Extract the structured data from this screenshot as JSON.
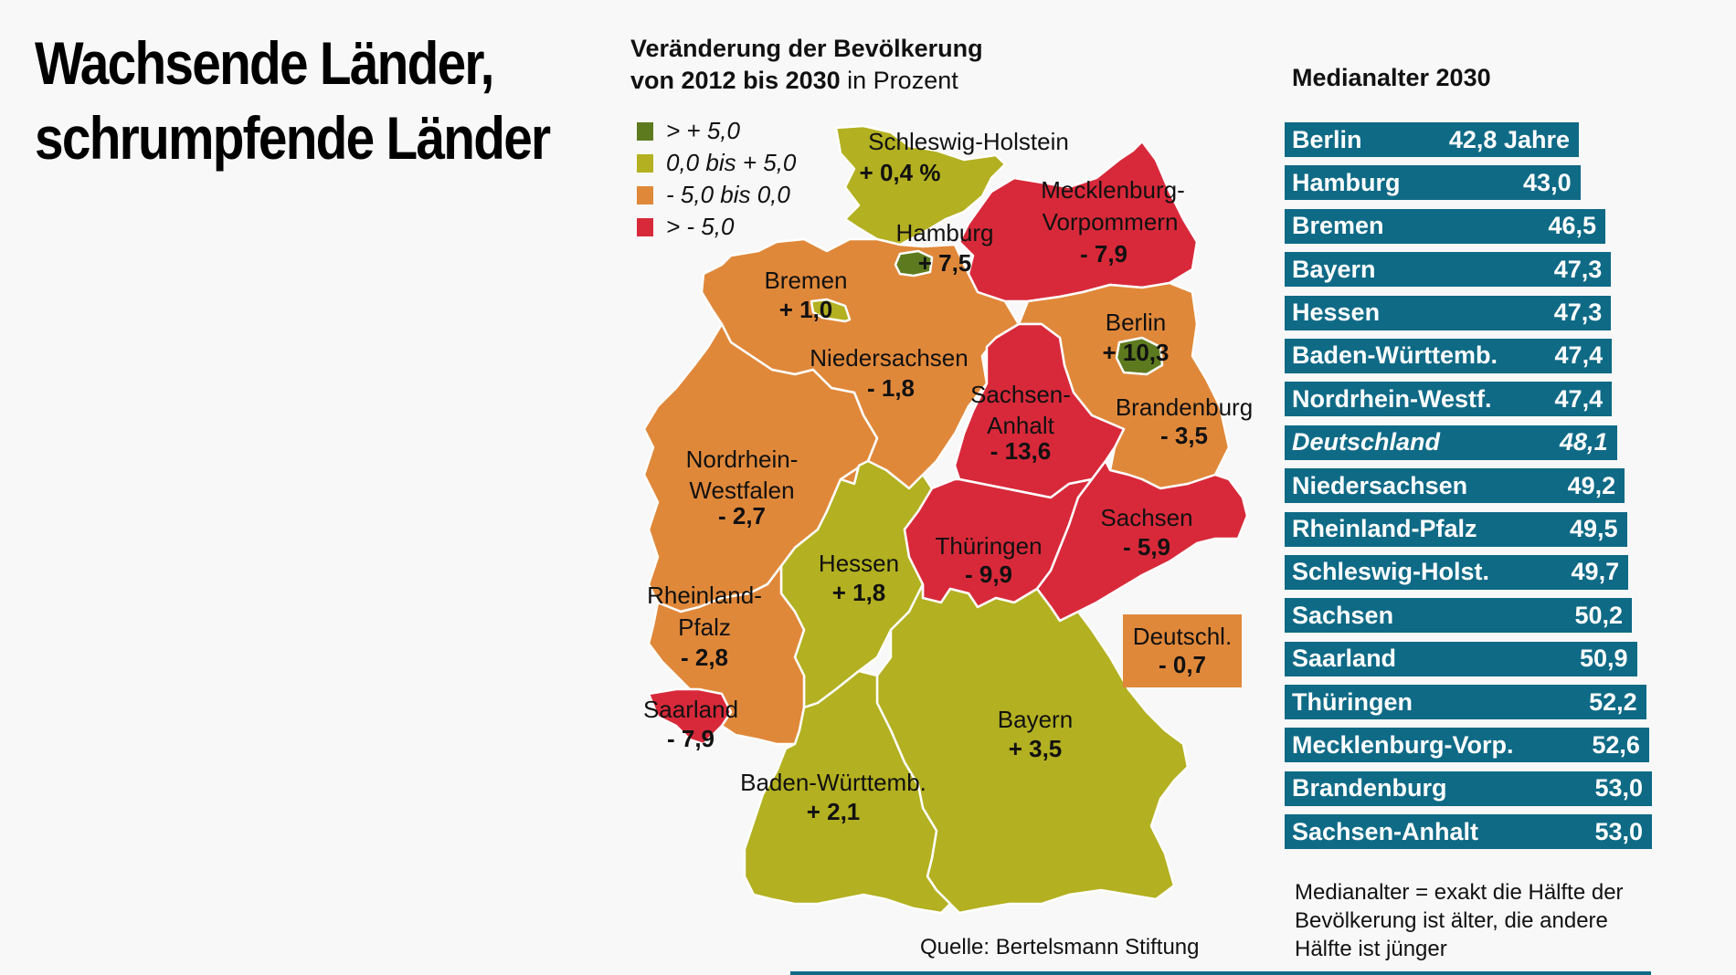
{
  "title": {
    "line1": "Wachsende Länder,",
    "line2": "schrumpfende Länder"
  },
  "map_heading": {
    "line1": "Veränderung der Bevölkerung",
    "line2_bold": "von 2012 bis 2030",
    "line2_rest": " in Prozent"
  },
  "colors": {
    "strong_growth": "#5d7a1f",
    "growth": "#b3b021",
    "shrink": "#e0883a",
    "strong_shrink": "#d8293a",
    "bar": "#0f6a86"
  },
  "legend": [
    {
      "label": "> + 5,0",
      "color": "#5d7a1f"
    },
    {
      "label": "0,0 bis + 5,0",
      "color": "#b3b021"
    },
    {
      "label": "- 5,0 bis 0,0",
      "color": "#e0883a"
    },
    {
      "label": "> - 5,0",
      "color": "#d8293a"
    }
  ],
  "regions": {
    "schleswig_holstein": {
      "name": "Schleswig-Holstein",
      "value": "+ 0,4 %"
    },
    "mecklenburg": {
      "name1": "Mecklenburg-",
      "name2": "Vorpommern",
      "value": "- 7,9"
    },
    "hamburg": {
      "name": "Hamburg",
      "value": "+ 7,5"
    },
    "bremen": {
      "name": "Bremen",
      "value": "+ 1,0"
    },
    "berlin": {
      "name": "Berlin",
      "value": "+ 10,3"
    },
    "niedersachsen": {
      "name": "Niedersachsen",
      "value": "- 1,8"
    },
    "sachsen_anhalt": {
      "name1": "Sachsen-",
      "name2": "Anhalt",
      "value": "- 13,6"
    },
    "brandenburg": {
      "name": "Brandenburg",
      "value": "- 3,5"
    },
    "nrw": {
      "name1": "Nordrhein-",
      "name2": "Westfalen",
      "value": "- 2,7"
    },
    "sachsen": {
      "name": "Sachsen",
      "value": "- 5,9"
    },
    "thueringen": {
      "name": "Thüringen",
      "value": "- 9,9"
    },
    "hessen": {
      "name": "Hessen",
      "value": "+ 1,8"
    },
    "rheinland_pfalz": {
      "name1": "Rheinland-",
      "name2": "Pfalz",
      "value": "- 2,8"
    },
    "saarland": {
      "name": "Saarland",
      "value": "- 7,9"
    },
    "bayern": {
      "name": "Bayern",
      "value": "+ 3,5"
    },
    "baden_wuerttemberg": {
      "name": "Baden-Württemb.",
      "value": "+ 2,1"
    }
  },
  "germany_box": {
    "name": "Deutschl.",
    "value": "- 0,7"
  },
  "source": "Quelle: Bertelsmann Stiftung",
  "median_age": {
    "heading": "Medianalter 2030",
    "max_age": 53.0,
    "rows": [
      {
        "name": "Berlin",
        "value": "42,8 Jahre",
        "age": 42.8
      },
      {
        "name": "Hamburg",
        "value": "43,0",
        "age": 43.0
      },
      {
        "name": "Bremen",
        "value": "46,5",
        "age": 46.5
      },
      {
        "name": "Bayern",
        "value": "47,3",
        "age": 47.3
      },
      {
        "name": "Hessen",
        "value": "47,3",
        "age": 47.3
      },
      {
        "name": "Baden-Württemb.",
        "value": "47,4",
        "age": 47.4
      },
      {
        "name": "Nordrhein-Westf.",
        "value": "47,4",
        "age": 47.4
      },
      {
        "name": "Deutschland",
        "value": "48,1",
        "age": 48.1,
        "italic": true
      },
      {
        "name": "Niedersachsen",
        "value": "49,2",
        "age": 49.2
      },
      {
        "name": "Rheinland-Pfalz",
        "value": "49,5",
        "age": 49.5
      },
      {
        "name": "Schleswig-Holst.",
        "value": "49,7",
        "age": 49.7
      },
      {
        "name": "Sachsen",
        "value": "50,2",
        "age": 50.2
      },
      {
        "name": "Saarland",
        "value": "50,9",
        "age": 50.9
      },
      {
        "name": "Thüringen",
        "value": "52,2",
        "age": 52.2
      },
      {
        "name": "Mecklenburg-Vorp.",
        "value": "52,6",
        "age": 52.6
      },
      {
        "name": "Brandenburg",
        "value": "53,0",
        "age": 53.0
      },
      {
        "name": "Sachsen-Anhalt",
        "value": "53,0",
        "age": 53.0
      }
    ],
    "note": {
      "line1": "Medianalter = exakt die Hälfte der",
      "line2": "Bevölkerung ist älter, die andere",
      "line3": "Hälfte ist jünger"
    }
  }
}
